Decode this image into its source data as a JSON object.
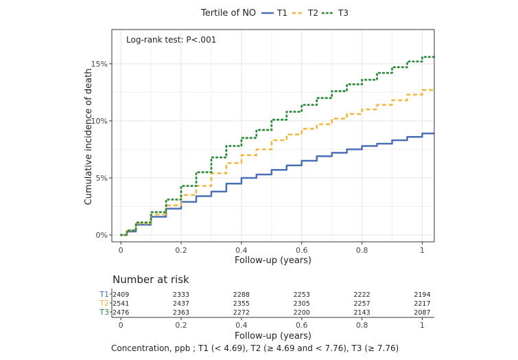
{
  "chart_data": {
    "type": "line",
    "legend": {
      "title": "Tertile of NO",
      "position": "top",
      "entries": [
        {
          "name": "T1",
          "color": "#4a6fb5",
          "style": "solid"
        },
        {
          "name": "T2",
          "color": "#f2b63a",
          "style": "dashed"
        },
        {
          "name": "T3",
          "color": "#2f8a3c",
          "style": "dotted"
        }
      ]
    },
    "annotation": "Log-rank test: P<.001",
    "xlabel": "Follow-up (years)",
    "ylabel": "Cumulative incidence of death",
    "xlim": [
      -0.03,
      1.04
    ],
    "ylim": [
      -0.006,
      0.18
    ],
    "grid": true,
    "x_ticks": [
      {
        "value": 0,
        "label": "0"
      },
      {
        "value": 0.2,
        "label": "0.2"
      },
      {
        "value": 0.4,
        "label": "0.4"
      },
      {
        "value": 0.6,
        "label": "0.6"
      },
      {
        "value": 0.8,
        "label": "0.8"
      },
      {
        "value": 1,
        "label": "1"
      }
    ],
    "y_ticks": [
      {
        "value": 0,
        "label": "0%"
      },
      {
        "value": 0.05,
        "label": "5%"
      },
      {
        "value": 0.1,
        "label": "10%"
      },
      {
        "value": 0.15,
        "label": "15%"
      }
    ],
    "x": [
      0,
      0.02,
      0.05,
      0.1,
      0.15,
      0.2,
      0.25,
      0.3,
      0.35,
      0.4,
      0.45,
      0.5,
      0.55,
      0.6,
      0.65,
      0.7,
      0.75,
      0.8,
      0.85,
      0.9,
      0.95,
      1.0,
      1.04
    ],
    "series": [
      {
        "name": "T1",
        "values": [
          0,
          0.003,
          0.009,
          0.016,
          0.023,
          0.029,
          0.034,
          0.038,
          0.045,
          0.05,
          0.053,
          0.057,
          0.061,
          0.065,
          0.069,
          0.072,
          0.075,
          0.078,
          0.08,
          0.083,
          0.086,
          0.089,
          0.089
        ]
      },
      {
        "name": "T2",
        "values": [
          0,
          0.004,
          0.01,
          0.018,
          0.026,
          0.035,
          0.043,
          0.054,
          0.063,
          0.07,
          0.075,
          0.083,
          0.088,
          0.093,
          0.097,
          0.102,
          0.106,
          0.11,
          0.114,
          0.118,
          0.123,
          0.127,
          0.129
        ]
      },
      {
        "name": "T3",
        "values": [
          0,
          0.004,
          0.011,
          0.02,
          0.031,
          0.043,
          0.055,
          0.068,
          0.078,
          0.085,
          0.092,
          0.101,
          0.108,
          0.114,
          0.12,
          0.126,
          0.132,
          0.136,
          0.142,
          0.147,
          0.152,
          0.156,
          0.158
        ]
      }
    ],
    "risk_table": {
      "title": "Number at risk",
      "xlabel": "Follow-up (years)",
      "rows": [
        {
          "name": "T1",
          "color": "#4a6fb5",
          "values": [
            "2409",
            "2333",
            "2288",
            "2253",
            "2222",
            "2194"
          ]
        },
        {
          "name": "T2",
          "color": "#f2b63a",
          "values": [
            "2541",
            "2437",
            "2355",
            "2305",
            "2257",
            "2217"
          ]
        },
        {
          "name": "T3",
          "color": "#2f8a3c",
          "values": [
            "2476",
            "2363",
            "2272",
            "2200",
            "2143",
            "2087"
          ]
        }
      ]
    },
    "caption": "Concentration, ppb ; T1 (< 4.69), T2 (≥ 4.69 and < 7.76), T3 (≥ 7.76)"
  }
}
